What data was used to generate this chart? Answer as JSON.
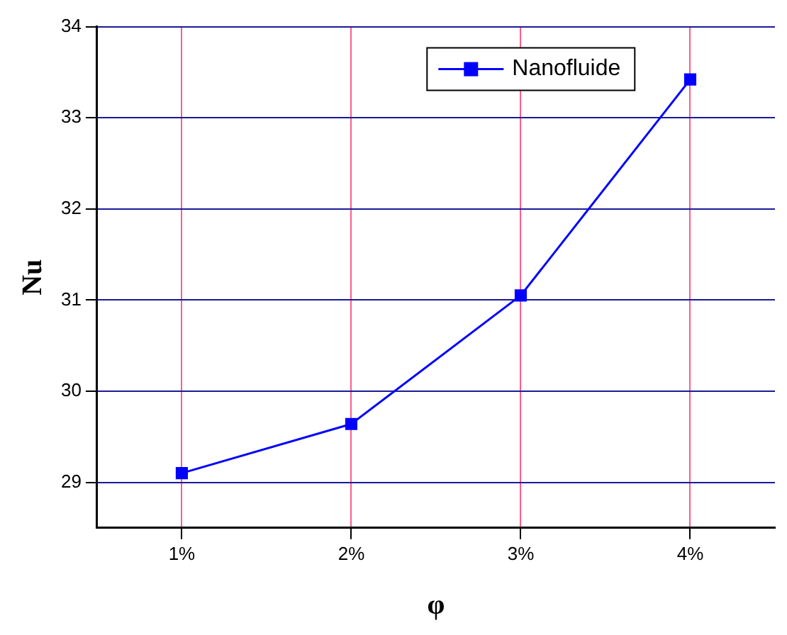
{
  "chart_data": {
    "type": "line",
    "xlabel": "φ",
    "ylabel": "Nu",
    "categories": [
      "1%",
      "2%",
      "3%",
      "4%"
    ],
    "series": [
      {
        "name": "Nanofluide",
        "color": "#0000ff",
        "values": [
          29.1,
          29.64,
          31.05,
          33.42
        ]
      }
    ],
    "ylim": [
      28.5,
      34
    ],
    "yticks": [
      29,
      30,
      31,
      32,
      33,
      34
    ],
    "grid": true,
    "legend": "top right",
    "marker": "square",
    "line_style": "solid"
  }
}
